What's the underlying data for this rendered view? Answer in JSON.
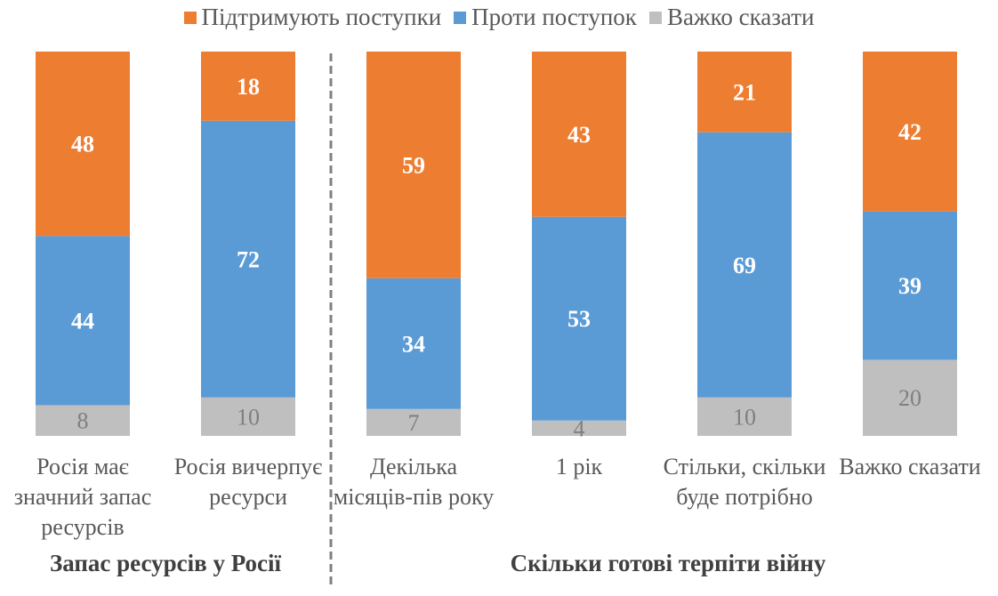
{
  "chart_data": {
    "type": "bar",
    "stacked": true,
    "percent": true,
    "ylim": [
      0,
      100
    ],
    "grid": false,
    "legend_position": "top",
    "categories": [
      "Росія має значний запас ресурсів",
      "Росія вичерпує ресурси",
      "Декілька місяців-пів року",
      "1 рік",
      "Стільки, скільки буде потрібно",
      "Важко сказати"
    ],
    "groups": [
      {
        "label": "Запас ресурсів у Росії",
        "categories": [
          0,
          1
        ]
      },
      {
        "label": "Скільки готові терпіти війну",
        "categories": [
          2,
          3,
          4,
          5
        ]
      }
    ],
    "series": [
      {
        "name": "Підтримують поступки",
        "color": "#ED7D31",
        "values": [
          48,
          18,
          59,
          43,
          21,
          42
        ]
      },
      {
        "name": "Проти поступок",
        "color": "#5B9BD5",
        "values": [
          44,
          72,
          34,
          53,
          69,
          39
        ]
      },
      {
        "name": "Важко сказати",
        "color": "#BFBFBF",
        "values": [
          8,
          10,
          7,
          4,
          10,
          20
        ]
      }
    ]
  }
}
